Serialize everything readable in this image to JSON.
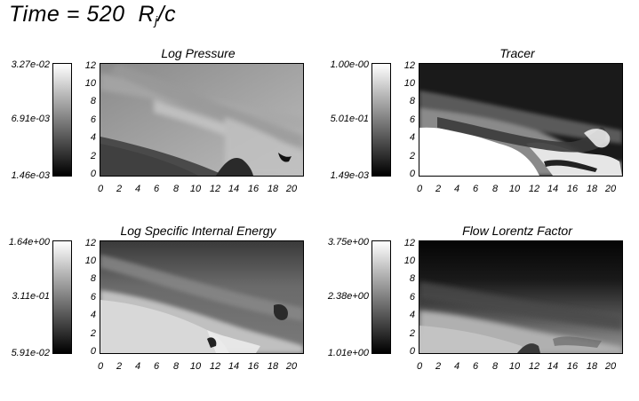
{
  "header": {
    "title": "Time =  520",
    "unit_main": "R",
    "unit_sub": "j",
    "unit_tail": "/c"
  },
  "chart_data": [
    {
      "type": "heatmap",
      "title": "Log Pressure",
      "xlabel": "",
      "ylabel": "",
      "xlim": [
        0,
        21
      ],
      "ylim": [
        0,
        12.5
      ],
      "x_ticks": [
        "0",
        "2",
        "4",
        "6",
        "8",
        "10",
        "12",
        "14",
        "16",
        "18",
        "20"
      ],
      "y_ticks": [
        "0",
        "2",
        "4",
        "6",
        "8",
        "10",
        "12"
      ],
      "colorbar": {
        "max": "3.27e-02",
        "mid": "6.91e-03",
        "min": "1.46e-03",
        "colors": [
          "#ffffff",
          "#000000"
        ]
      }
    },
    {
      "type": "heatmap",
      "title": "Tracer",
      "xlabel": "",
      "ylabel": "",
      "xlim": [
        0,
        21
      ],
      "ylim": [
        0,
        12.5
      ],
      "x_ticks": [
        "0",
        "2",
        "4",
        "6",
        "8",
        "10",
        "12",
        "14",
        "16",
        "18",
        "20"
      ],
      "y_ticks": [
        "0",
        "2",
        "4",
        "6",
        "8",
        "10",
        "12"
      ],
      "colorbar": {
        "max": "1.00e-00",
        "mid": "5.01e-01",
        "min": "1.49e-03",
        "colors": [
          "#ffffff",
          "#000000"
        ]
      }
    },
    {
      "type": "heatmap",
      "title": "Log Specific Internal Energy",
      "xlabel": "",
      "ylabel": "",
      "xlim": [
        0,
        21
      ],
      "ylim": [
        0,
        12.5
      ],
      "x_ticks": [
        "0",
        "2",
        "4",
        "6",
        "8",
        "10",
        "12",
        "14",
        "16",
        "18",
        "20"
      ],
      "y_ticks": [
        "0",
        "2",
        "4",
        "6",
        "8",
        "10",
        "12"
      ],
      "colorbar": {
        "max": "1.64e+00",
        "mid": "3.11e-01",
        "min": "5.91e-02",
        "colors": [
          "#ffffff",
          "#000000"
        ]
      }
    },
    {
      "type": "heatmap",
      "title": "Flow Lorentz Factor",
      "xlabel": "",
      "ylabel": "",
      "xlim": [
        0,
        21
      ],
      "ylim": [
        0,
        12.5
      ],
      "x_ticks": [
        "0",
        "2",
        "4",
        "6",
        "8",
        "10",
        "12",
        "14",
        "16",
        "18",
        "20"
      ],
      "y_ticks": [
        "0",
        "2",
        "4",
        "6",
        "8",
        "10",
        "12"
      ],
      "colorbar": {
        "max": "3.75e+00",
        "mid": "2.38e+00",
        "min": "1.01e+00",
        "colors": [
          "#ffffff",
          "#000000"
        ]
      }
    }
  ]
}
